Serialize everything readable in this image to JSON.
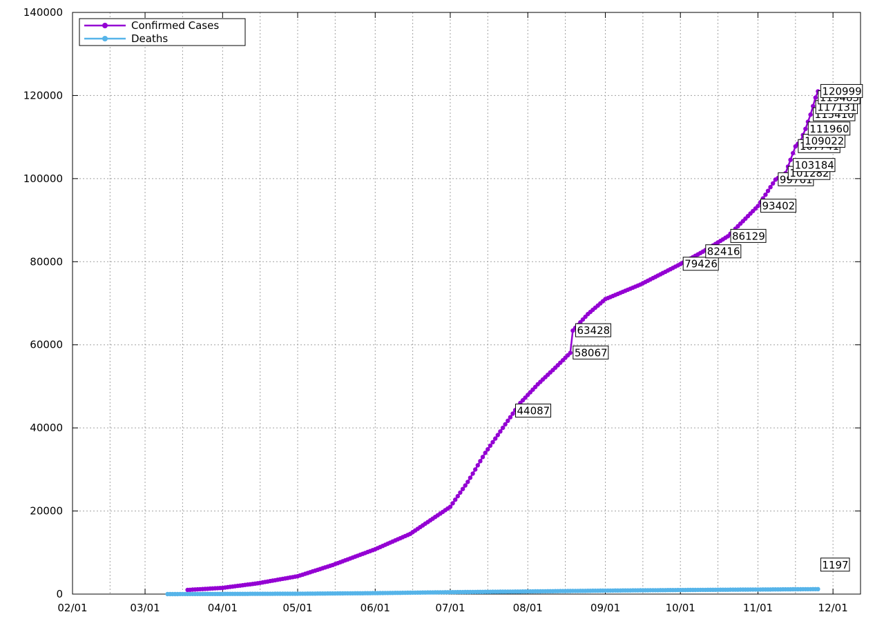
{
  "chart_data": {
    "type": "line",
    "title": "",
    "xlabel": "",
    "ylabel": "",
    "x_ticks": [
      "02/01",
      "03/01",
      "04/01",
      "05/01",
      "06/01",
      "07/01",
      "08/01",
      "09/01",
      "10/01",
      "11/01",
      "12/01"
    ],
    "y_ticks": [
      "0",
      "20000",
      "40000",
      "60000",
      "80000",
      "100000",
      "120000",
      "140000"
    ],
    "xlim": [
      "2020-02-01",
      "2020-12-12"
    ],
    "ylim": [
      0,
      140000
    ],
    "grid": true,
    "legend_position": "top-left",
    "series": [
      {
        "name": "Confirmed Cases",
        "color": "#9400d3",
        "points": [
          [
            "2020-03-18",
            1000
          ],
          [
            "2020-04-01",
            1500
          ],
          [
            "2020-04-15",
            2600
          ],
          [
            "2020-05-01",
            4300
          ],
          [
            "2020-05-15",
            7000
          ],
          [
            "2020-06-01",
            10800
          ],
          [
            "2020-06-15",
            14500
          ],
          [
            "2020-07-01",
            21000
          ],
          [
            "2020-07-08",
            27000
          ],
          [
            "2020-07-15",
            34000
          ],
          [
            "2020-07-22",
            40000
          ],
          [
            "2020-07-29",
            46000
          ],
          [
            "2020-08-05",
            50500
          ],
          [
            "2020-08-12",
            54500
          ],
          [
            "2020-08-18",
            58067
          ],
          [
            "2020-08-19",
            63428
          ],
          [
            "2020-08-25",
            67400
          ],
          [
            "2020-09-01",
            71000
          ],
          [
            "2020-09-15",
            74500
          ],
          [
            "2020-10-01",
            79426
          ],
          [
            "2020-10-10",
            82416
          ],
          [
            "2020-10-20",
            86129
          ],
          [
            "2020-11-01",
            93402
          ],
          [
            "2020-11-08",
            99761
          ],
          [
            "2020-11-12",
            101282
          ],
          [
            "2020-11-16",
            107741
          ],
          [
            "2020-11-18",
            109022
          ],
          [
            "2020-11-20",
            111960
          ],
          [
            "2020-11-22",
            115410
          ],
          [
            "2020-11-24",
            119483
          ],
          [
            "2020-11-25",
            120999
          ]
        ]
      },
      {
        "name": "Deaths",
        "color": "#56b4e9",
        "points": [
          [
            "2020-03-10",
            0
          ],
          [
            "2020-04-01",
            40
          ],
          [
            "2020-05-01",
            90
          ],
          [
            "2020-06-01",
            230
          ],
          [
            "2020-07-01",
            460
          ],
          [
            "2020-08-01",
            640
          ],
          [
            "2020-09-01",
            840
          ],
          [
            "2020-10-01",
            980
          ],
          [
            "2020-11-01",
            1100
          ],
          [
            "2020-11-25",
            1197
          ]
        ]
      }
    ],
    "annotations": [
      {
        "x": "2020-08-18",
        "y": 58067,
        "text": "58067"
      },
      {
        "x": "2020-08-19",
        "y": 63428,
        "text": "63428"
      },
      {
        "x": "2020-10-01",
        "y": 79426,
        "text": "79426"
      },
      {
        "x": "2020-10-10",
        "y": 82416,
        "text": "82416"
      },
      {
        "x": "2020-10-20",
        "y": 86129,
        "text": "86129"
      },
      {
        "x": "2020-11-01",
        "y": 93402,
        "text": "93402"
      },
      {
        "x": "2020-11-08",
        "y": 99761,
        "text": "99761"
      },
      {
        "x": "2020-11-12",
        "y": 101282,
        "text": "101282"
      },
      {
        "x": "2020-11-14",
        "y": 103184,
        "text": "103184"
      },
      {
        "x": "2020-11-16",
        "y": 107741,
        "text": "107741"
      },
      {
        "x": "2020-11-18",
        "y": 109022,
        "text": "109022"
      },
      {
        "x": "2020-11-20",
        "y": 111960,
        "text": "111960"
      },
      {
        "x": "2020-11-22",
        "y": 115410,
        "text": "115410"
      },
      {
        "x": "2020-11-23",
        "y": 117131,
        "text": "117131"
      },
      {
        "x": "2020-11-24",
        "y": 119483,
        "text": "119483"
      },
      {
        "x": "2020-11-25",
        "y": 120999,
        "text": "120999"
      },
      {
        "x": "2020-07-26",
        "y": 44087,
        "text": "44087"
      },
      {
        "x": "2020-11-25",
        "y": 1197,
        "text": "1197"
      }
    ]
  }
}
